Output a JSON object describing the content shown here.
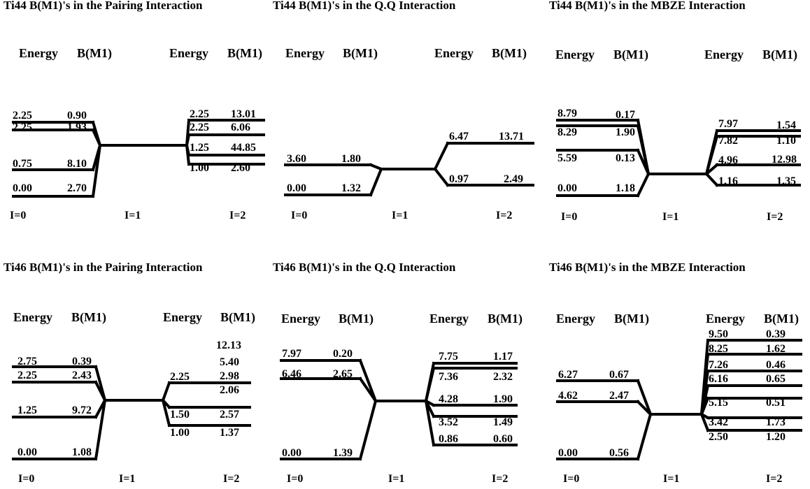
{
  "panels": [
    {
      "title": "Ti44 B(M1)'s in the Pairing Interaction",
      "headers": [
        "Energy",
        "B(M1)",
        "Energy",
        "B(M1)"
      ],
      "i_labels": [
        "I=0",
        "I=1",
        "I=2"
      ],
      "left_levels": [
        {
          "energy": "2.25",
          "bm1": "0.90"
        },
        {
          "energy": "2.25",
          "bm1": "1.93"
        },
        {
          "energy": "0.75",
          "bm1": "8.10"
        },
        {
          "energy": "0.00",
          "bm1": "2.70"
        }
      ],
      "right_levels": [
        {
          "energy": "2.25",
          "bm1": "13.01"
        },
        {
          "energy": "2.25",
          "bm1": "6.06"
        },
        {
          "energy": "1.25",
          "bm1": "44.85"
        },
        {
          "energy": "1.00",
          "bm1": "2.60"
        }
      ],
      "extra_labels": []
    },
    {
      "title": "Ti44 B(M1)'s in the Q.Q Interaction",
      "headers": [
        "Energy",
        "B(M1)",
        "Energy",
        "B(M1)"
      ],
      "i_labels": [
        "I=0",
        "I=1",
        "I=2"
      ],
      "left_levels": [
        {
          "energy": "3.60",
          "bm1": "1.80"
        },
        {
          "energy": "0.00",
          "bm1": "1.32"
        }
      ],
      "right_levels": [
        {
          "energy": "6.47",
          "bm1": "13.71"
        },
        {
          "energy": "0.97",
          "bm1": "2.49"
        }
      ],
      "extra_labels": []
    },
    {
      "title": "Ti44 B(M1)'s in the MBZE Interaction",
      "headers": [
        "Energy",
        "B(M1)",
        "Energy",
        "B(M1)"
      ],
      "i_labels": [
        "I=0",
        "I=1",
        "I=2"
      ],
      "left_levels": [
        {
          "energy": "8.79",
          "bm1": "0.17"
        },
        {
          "energy": "8.29",
          "bm1": "1.90"
        },
        {
          "energy": "5.59",
          "bm1": "0.13"
        },
        {
          "energy": "0.00",
          "bm1": "1.18"
        }
      ],
      "right_levels": [
        {
          "energy": "7.97",
          "bm1": "1.54"
        },
        {
          "energy": "7.82",
          "bm1": "1.10"
        },
        {
          "energy": "4.96",
          "bm1": "12.98"
        },
        {
          "energy": "1.16",
          "bm1": "1.35"
        }
      ],
      "extra_labels": []
    },
    {
      "title": "Ti46 B(M1)'s in the Pairing Interaction",
      "headers": [
        "Energy",
        "B(M1)",
        "Energy",
        "B(M1)"
      ],
      "i_labels": [
        "I=0",
        "I=1",
        "I=2"
      ],
      "left_levels": [
        {
          "energy": "2.75",
          "bm1": "0.39"
        },
        {
          "energy": "2.25",
          "bm1": "2.43"
        },
        {
          "energy": "1.25",
          "bm1": "9.72"
        },
        {
          "energy": "0.00",
          "bm1": "1.08"
        }
      ],
      "right_levels": [
        {
          "energy": "2.25",
          "bm1": "2.98"
        },
        {
          "energy": "1.50",
          "bm1": "2.57"
        },
        {
          "energy": "1.00",
          "bm1": "1.37"
        }
      ],
      "extra_labels": [
        "12.13",
        "5.40",
        "2.06"
      ]
    },
    {
      "title": "Ti46 B(M1)'s in the Q.Q Interaction",
      "headers": [
        "Energy",
        "B(M1)",
        "Energy",
        "B(M1)"
      ],
      "i_labels": [
        "I=0",
        "I=1",
        "I=2"
      ],
      "left_levels": [
        {
          "energy": "7.97",
          "bm1": "0.20"
        },
        {
          "energy": "6.46",
          "bm1": "2.65"
        },
        {
          "energy": "0.00",
          "bm1": "1.39"
        }
      ],
      "right_levels": [
        {
          "energy": "7.75",
          "bm1": "1.17"
        },
        {
          "energy": "7.36",
          "bm1": "2.32"
        },
        {
          "energy": "4.28",
          "bm1": "1.90"
        },
        {
          "energy": "3.52",
          "bm1": "1.49"
        },
        {
          "energy": "0.86",
          "bm1": "0.60"
        }
      ],
      "extra_labels": []
    },
    {
      "title": "Ti46 B(M1)'s in the MBZE Interaction",
      "headers": [
        "Energy",
        "B(M1)",
        "Energy",
        "B(M1)"
      ],
      "i_labels": [
        "I=0",
        "I=1",
        "I=2"
      ],
      "left_levels": [
        {
          "energy": "6.27",
          "bm1": "0.67"
        },
        {
          "energy": "4.62",
          "bm1": "2.47"
        },
        {
          "energy": "0.00",
          "bm1": "0.56"
        }
      ],
      "right_levels": [
        {
          "energy": "9.50",
          "bm1": "0.39"
        },
        {
          "energy": "8.25",
          "bm1": "1.62"
        },
        {
          "energy": "7.26",
          "bm1": "0.46"
        },
        {
          "energy": "6.16",
          "bm1": "0.65"
        },
        {
          "energy": "5.15",
          "bm1": "0.51"
        },
        {
          "energy": "3.42",
          "bm1": "1.73"
        },
        {
          "energy": "2.50",
          "bm1": "1.20"
        }
      ],
      "extra_labels": []
    }
  ]
}
